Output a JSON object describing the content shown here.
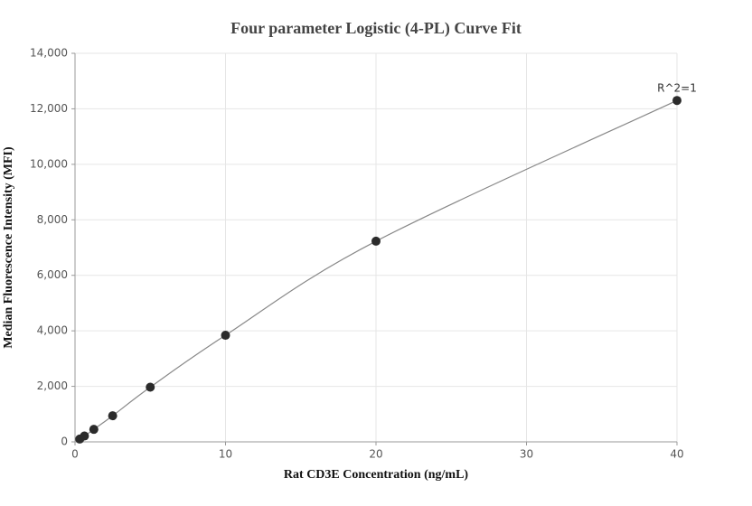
{
  "chart_data": {
    "type": "scatter",
    "title": "Four parameter Logistic (4-PL) Curve Fit",
    "x_label": "Rat CD3E Concentration (ng/mL)",
    "y_label": "Median Fluorescence Intensity (MFI)",
    "annotation": "R^2=1",
    "series": [
      {
        "color": "#2b2b2b",
        "x": [
          0.3125,
          0.625,
          1.25,
          2.5,
          5,
          10,
          20,
          40
        ],
        "values": [
          100,
          210,
          450,
          940,
          1970,
          3840,
          7230,
          12300
        ]
      }
    ],
    "fit_color": "#888888",
    "xlim": [
      0,
      40
    ],
    "xticks": [
      0,
      10,
      20,
      30,
      40
    ],
    "ylim": [
      0,
      14000
    ],
    "yticks": [
      0,
      {
        "value": 2000,
        "label": "2,000"
      },
      {
        "value": 4000,
        "label": "4,000"
      },
      {
        "value": 6000,
        "label": "6,000"
      },
      {
        "value": 8000,
        "label": "8,000"
      },
      {
        "value": 10000,
        "label": "10,000"
      },
      {
        "value": 12000,
        "label": "12,000"
      },
      {
        "value": 14000,
        "label": "14,000"
      }
    ],
    "grid": true
  }
}
